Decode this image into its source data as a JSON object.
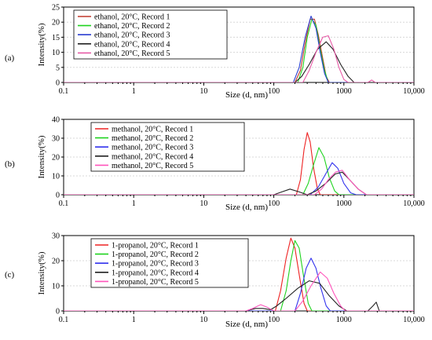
{
  "chart_data": [
    {
      "panel_label": "(a)",
      "type": "line",
      "xlabel": "Size (d, nm)",
      "ylabel": "Intensity(%)",
      "x_scale": "log",
      "xlim": [
        0.1,
        10000
      ],
      "ylim": [
        0,
        25
      ],
      "x_ticks": [
        "0.1",
        "1",
        "10",
        "100",
        "1000",
        "10,000"
      ],
      "y_ticks": [
        0,
        5,
        10,
        15,
        20,
        25
      ],
      "legend_position": "top-left",
      "series": [
        {
          "name": "ethanol, 20°C, Record 1",
          "color": "#c0392b",
          "points": [
            [
              0.1,
              0
            ],
            [
              200,
              0
            ],
            [
              240,
              4
            ],
            [
              280,
              13
            ],
            [
              330,
              21
            ],
            [
              380,
              21
            ],
            [
              430,
              16
            ],
            [
              500,
              8
            ],
            [
              560,
              2
            ],
            [
              620,
              0
            ],
            [
              10000,
              0
            ]
          ]
        },
        {
          "name": "ethanol, 20°C, Record 2",
          "color": "#1fd31f",
          "points": [
            [
              0.1,
              0
            ],
            [
              220,
              0
            ],
            [
              260,
              5
            ],
            [
              300,
              15
            ],
            [
              350,
              21
            ],
            [
              400,
              19
            ],
            [
              460,
              11
            ],
            [
              530,
              4
            ],
            [
              600,
              0
            ],
            [
              10000,
              0
            ]
          ]
        },
        {
          "name": "ethanol, 20°C, Record 3",
          "color": "#2b3fd1",
          "points": [
            [
              0.1,
              0
            ],
            [
              190,
              0
            ],
            [
              230,
              5
            ],
            [
              280,
              15
            ],
            [
              340,
              22
            ],
            [
              400,
              18
            ],
            [
              460,
              10
            ],
            [
              530,
              3
            ],
            [
              600,
              0
            ],
            [
              10000,
              0
            ]
          ]
        },
        {
          "name": "ethanol, 20°C, Record 4",
          "color": "#222222",
          "points": [
            [
              0.1,
              0
            ],
            [
              200,
              0
            ],
            [
              250,
              2
            ],
            [
              320,
              6
            ],
            [
              420,
              11
            ],
            [
              560,
              13.5
            ],
            [
              700,
              11
            ],
            [
              900,
              6
            ],
            [
              1150,
              2
            ],
            [
              1400,
              0
            ],
            [
              10000,
              0
            ]
          ]
        },
        {
          "name": "ethanol, 20°C, Record 5",
          "color": "#e75aa6",
          "points": [
            [
              0.1,
              0
            ],
            [
              260,
              0
            ],
            [
              320,
              4
            ],
            [
              400,
              10
            ],
            [
              500,
              15
            ],
            [
              600,
              15.5
            ],
            [
              720,
              11
            ],
            [
              850,
              5
            ],
            [
              1000,
              1
            ],
            [
              1150,
              0
            ],
            [
              2200,
              0
            ],
            [
              2500,
              0.8
            ],
            [
              2800,
              0
            ],
            [
              10000,
              0
            ]
          ]
        }
      ]
    },
    {
      "panel_label": "(b)",
      "type": "line",
      "xlabel": "Size (d, nm)",
      "ylabel": "Intensity(%)",
      "x_scale": "log",
      "xlim": [
        0.1,
        10000
      ],
      "ylim": [
        0,
        40
      ],
      "x_ticks": [
        "0.1",
        "1",
        "10",
        "100",
        "1000",
        "10,000"
      ],
      "y_ticks": [
        0,
        10,
        20,
        30,
        40
      ],
      "legend_position": "top-left",
      "series": [
        {
          "name": "methanol, 20°C, Record 1",
          "color": "#ee2222",
          "points": [
            [
              0.1,
              0
            ],
            [
              210,
              0
            ],
            [
              240,
              8
            ],
            [
              270,
              24
            ],
            [
              300,
              33
            ],
            [
              330,
              28
            ],
            [
              370,
              14
            ],
            [
              420,
              3
            ],
            [
              460,
              0
            ],
            [
              10000,
              0
            ]
          ]
        },
        {
          "name": "methanol, 20°C, Record 2",
          "color": "#1fd31f",
          "points": [
            [
              0.1,
              0
            ],
            [
              260,
              0
            ],
            [
              310,
              6
            ],
            [
              370,
              16
            ],
            [
              440,
              25
            ],
            [
              520,
              20
            ],
            [
              620,
              9
            ],
            [
              740,
              2
            ],
            [
              850,
              0
            ],
            [
              10000,
              0
            ]
          ]
        },
        {
          "name": "methanol, 20°C, Record 3",
          "color": "#3333ee",
          "points": [
            [
              0.1,
              0
            ],
            [
              330,
              0
            ],
            [
              430,
              4
            ],
            [
              550,
              11
            ],
            [
              680,
              17
            ],
            [
              820,
              14
            ],
            [
              1000,
              6
            ],
            [
              1250,
              1
            ],
            [
              1500,
              0
            ],
            [
              10000,
              0
            ]
          ]
        },
        {
          "name": "methanol, 20°C, Record 4",
          "color": "#222222",
          "points": [
            [
              0.1,
              0
            ],
            [
              100,
              0
            ],
            [
              130,
              1.5
            ],
            [
              170,
              3
            ],
            [
              230,
              1.5
            ],
            [
              300,
              0
            ],
            [
              400,
              2
            ],
            [
              550,
              6
            ],
            [
              750,
              11
            ],
            [
              950,
              12
            ],
            [
              1200,
              8
            ],
            [
              1600,
              3
            ],
            [
              2100,
              0
            ],
            [
              10000,
              0
            ]
          ]
        },
        {
          "name": "methanol, 20°C, Record 5",
          "color": "#ff55bb",
          "points": [
            [
              0.1,
              0
            ],
            [
              380,
              0
            ],
            [
              480,
              3
            ],
            [
              600,
              8
            ],
            [
              760,
              12
            ],
            [
              950,
              13
            ],
            [
              1200,
              8
            ],
            [
              1600,
              3
            ],
            [
              2100,
              0
            ],
            [
              10000,
              0
            ]
          ]
        }
      ]
    },
    {
      "panel_label": "(c)",
      "type": "line",
      "xlabel": "Size (d, nm)",
      "ylabel": "Intensity(%)",
      "x_scale": "log",
      "xlim": [
        0.1,
        10000
      ],
      "ylim": [
        0,
        30
      ],
      "x_ticks": [
        "0.1",
        "1",
        "10",
        "100",
        "1000",
        "10,000"
      ],
      "y_ticks": [
        0,
        10,
        20,
        30
      ],
      "legend_position": "top-left",
      "series": [
        {
          "name": "1-propanol, 20°C, Record 1",
          "color": "#ee2222",
          "points": [
            [
              0.1,
              0
            ],
            [
              105,
              0
            ],
            [
              125,
              8
            ],
            [
              150,
              21
            ],
            [
              175,
              29
            ],
            [
              200,
              25
            ],
            [
              235,
              13
            ],
            [
              270,
              3
            ],
            [
              300,
              0
            ],
            [
              10000,
              0
            ]
          ]
        },
        {
          "name": "1-propanol, 20°C, Record 2",
          "color": "#1fd31f",
          "points": [
            [
              0.1,
              0
            ],
            [
              125,
              0
            ],
            [
              150,
              8
            ],
            [
              175,
              20
            ],
            [
              200,
              28
            ],
            [
              230,
              25
            ],
            [
              265,
              14
            ],
            [
              310,
              3
            ],
            [
              350,
              0
            ],
            [
              10000,
              0
            ]
          ]
        },
        {
          "name": "1-propanol, 20°C, Record 3",
          "color": "#3333ee",
          "points": [
            [
              0.1,
              0
            ],
            [
              200,
              0
            ],
            [
              240,
              7
            ],
            [
              290,
              17
            ],
            [
              340,
              21
            ],
            [
              400,
              17
            ],
            [
              470,
              9
            ],
            [
              560,
              2
            ],
            [
              640,
              0
            ],
            [
              10000,
              0
            ]
          ]
        },
        {
          "name": "1-propanol, 20°C, Record 4",
          "color": "#222222",
          "points": [
            [
              0.1,
              0
            ],
            [
              40,
              0
            ],
            [
              55,
              1
            ],
            [
              70,
              1
            ],
            [
              90,
              0.5
            ],
            [
              110,
              2
            ],
            [
              150,
              5
            ],
            [
              220,
              9
            ],
            [
              320,
              12
            ],
            [
              450,
              11
            ],
            [
              620,
              6
            ],
            [
              850,
              2
            ],
            [
              1100,
              0
            ],
            [
              2200,
              0
            ],
            [
              2600,
              2
            ],
            [
              2900,
              3.5
            ],
            [
              3200,
              0
            ],
            [
              10000,
              0
            ]
          ]
        },
        {
          "name": "1-propanol, 20°C, Record 5",
          "color": "#ff55bb",
          "points": [
            [
              0.1,
              0
            ],
            [
              40,
              0
            ],
            [
              50,
              1
            ],
            [
              65,
              2.5
            ],
            [
              80,
              1.5
            ],
            [
              100,
              0
            ],
            [
              200,
              0
            ],
            [
              260,
              4
            ],
            [
              340,
              10
            ],
            [
              460,
              15.5
            ],
            [
              580,
              13
            ],
            [
              720,
              7
            ],
            [
              900,
              2
            ],
            [
              1050,
              0
            ],
            [
              10000,
              0
            ]
          ]
        }
      ]
    }
  ]
}
